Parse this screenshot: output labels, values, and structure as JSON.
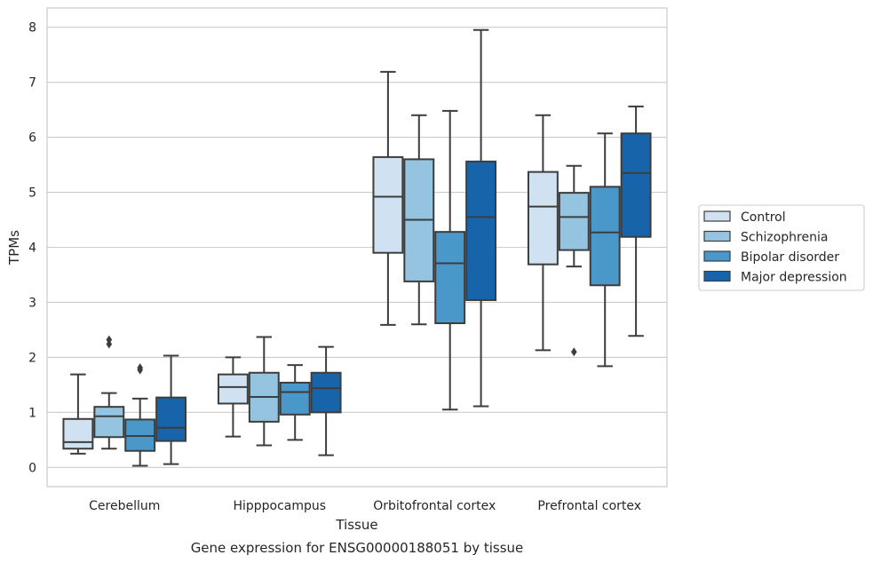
{
  "chart_data": {
    "type": "boxplot",
    "title": "",
    "caption": "Gene expression for ENSG00000188051 by tissue",
    "xlabel": "Tissue",
    "ylabel": "TPMs",
    "ylim": [
      -0.35,
      8.35
    ],
    "yticks": [
      0,
      1,
      2,
      3,
      4,
      5,
      6,
      7,
      8
    ],
    "grid": true,
    "legend_position": "right",
    "categories": [
      "Cerebellum",
      "Hipppocampus",
      "Orbitofrontal cortex",
      "Prefrontal cortex"
    ],
    "series": [
      {
        "name": "Control",
        "color": "#d0e1f2",
        "boxes": [
          {
            "whislo": 0.25,
            "q1": 0.34,
            "med": 0.46,
            "q3": 0.88,
            "whishi": 1.69,
            "fliers": []
          },
          {
            "whislo": 0.56,
            "q1": 1.16,
            "med": 1.46,
            "q3": 1.69,
            "whishi": 2.0,
            "fliers": []
          },
          {
            "whislo": 2.59,
            "q1": 3.9,
            "med": 4.92,
            "q3": 5.64,
            "whishi": 7.19,
            "fliers": []
          },
          {
            "whislo": 2.13,
            "q1": 3.69,
            "med": 4.74,
            "q3": 5.37,
            "whishi": 6.4,
            "fliers": []
          }
        ]
      },
      {
        "name": "Schizophrenia",
        "color": "#94c4df",
        "boxes": [
          {
            "whislo": 0.34,
            "q1": 0.55,
            "med": 0.93,
            "q3": 1.1,
            "whishi": 1.35,
            "fliers": [
              2.24,
              2.32
            ]
          },
          {
            "whislo": 0.4,
            "q1": 0.83,
            "med": 1.28,
            "q3": 1.72,
            "whishi": 2.37,
            "fliers": []
          },
          {
            "whislo": 2.6,
            "q1": 3.38,
            "med": 4.5,
            "q3": 5.6,
            "whishi": 6.4,
            "fliers": []
          },
          {
            "whislo": 3.65,
            "q1": 3.95,
            "med": 4.55,
            "q3": 4.99,
            "whishi": 5.48,
            "fliers": [
              2.1
            ]
          }
        ]
      },
      {
        "name": "Bipolar disorder",
        "color": "#4a98c9",
        "boxes": [
          {
            "whislo": 0.03,
            "q1": 0.3,
            "med": 0.57,
            "q3": 0.87,
            "whishi": 1.25,
            "fliers": [
              1.77,
              1.81
            ]
          },
          {
            "whislo": 0.5,
            "q1": 0.96,
            "med": 1.37,
            "q3": 1.54,
            "whishi": 1.86,
            "fliers": []
          },
          {
            "whislo": 1.05,
            "q1": 2.62,
            "med": 3.71,
            "q3": 4.28,
            "whishi": 6.48,
            "fliers": []
          },
          {
            "whislo": 1.84,
            "q1": 3.31,
            "med": 4.27,
            "q3": 5.1,
            "whishi": 6.07,
            "fliers": []
          }
        ]
      },
      {
        "name": "Major depression",
        "color": "#1764ab",
        "boxes": [
          {
            "whislo": 0.06,
            "q1": 0.48,
            "med": 0.72,
            "q3": 1.27,
            "whishi": 2.03,
            "fliers": []
          },
          {
            "whislo": 0.22,
            "q1": 1.0,
            "med": 1.44,
            "q3": 1.72,
            "whishi": 2.19,
            "fliers": []
          },
          {
            "whislo": 1.11,
            "q1": 3.04,
            "med": 4.55,
            "q3": 5.56,
            "whishi": 7.95,
            "fliers": []
          },
          {
            "whislo": 2.39,
            "q1": 4.19,
            "med": 5.35,
            "q3": 6.07,
            "whishi": 6.56,
            "fliers": []
          }
        ]
      }
    ]
  }
}
